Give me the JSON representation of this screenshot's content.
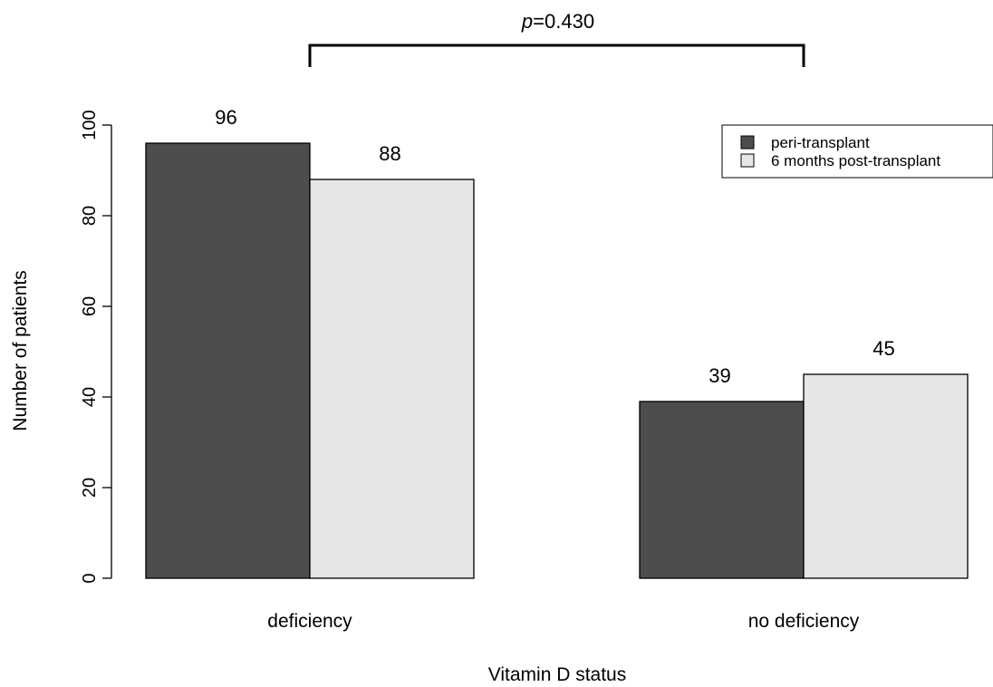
{
  "chart_data": {
    "type": "bar",
    "xlabel": "Vitamin D status",
    "ylabel": "Number of patients",
    "ylim": [
      0,
      100
    ],
    "yticks": [
      0,
      20,
      40,
      60,
      80,
      100
    ],
    "grid": false,
    "legend_position": "top-right",
    "categories": [
      "deficiency",
      "no deficiency"
    ],
    "series": [
      {
        "name": "peri-transplant",
        "color": "#4d4d4c",
        "values": [
          96,
          39
        ]
      },
      {
        "name": "6 months post-transplant",
        "color": "#e6e6e6",
        "values": [
          88,
          45
        ]
      }
    ],
    "annotation": {
      "type": "comparison-bracket",
      "p_symbol": "p",
      "p_rest": "=0.430",
      "between_categories": [
        "deficiency",
        "no deficiency"
      ]
    }
  }
}
